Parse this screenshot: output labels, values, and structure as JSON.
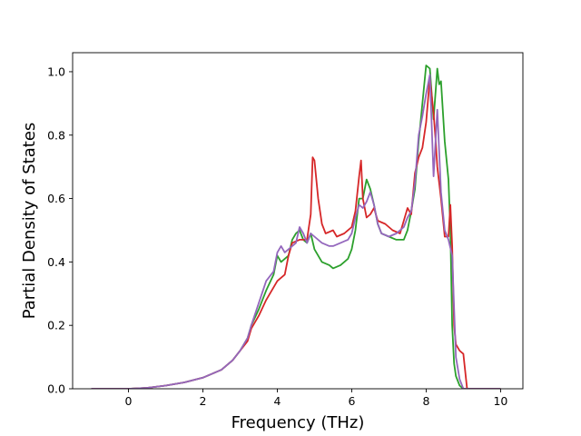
{
  "chart_data": {
    "type": "line",
    "xlabel": "Frequency (THz)",
    "ylabel": "Partial Density of States",
    "xlim": [
      -1.5,
      10.6
    ],
    "ylim": [
      0.0,
      1.06
    ],
    "xticks": [
      "0",
      "2",
      "4",
      "6",
      "8",
      "10"
    ],
    "yticks": [
      "0.0",
      "0.2",
      "0.4",
      "0.6",
      "0.8",
      "1.0"
    ],
    "grid": false,
    "legend": "none",
    "series": [
      {
        "color": "#2ca02c",
        "points": [
          [
            -1.0,
            0.0
          ],
          [
            0.0,
            0.0
          ],
          [
            0.5,
            0.003
          ],
          [
            1.0,
            0.01
          ],
          [
            1.5,
            0.02
          ],
          [
            2.0,
            0.035
          ],
          [
            2.5,
            0.06
          ],
          [
            2.8,
            0.09
          ],
          [
            3.0,
            0.12
          ],
          [
            3.2,
            0.16
          ],
          [
            3.3,
            0.2
          ],
          [
            3.5,
            0.25
          ],
          [
            3.7,
            0.31
          ],
          [
            3.9,
            0.36
          ],
          [
            4.0,
            0.42
          ],
          [
            4.1,
            0.4
          ],
          [
            4.2,
            0.41
          ],
          [
            4.3,
            0.42
          ],
          [
            4.4,
            0.47
          ],
          [
            4.5,
            0.49
          ],
          [
            4.6,
            0.5
          ],
          [
            4.7,
            0.47
          ],
          [
            4.8,
            0.46
          ],
          [
            4.9,
            0.49
          ],
          [
            5.0,
            0.44
          ],
          [
            5.2,
            0.4
          ],
          [
            5.4,
            0.39
          ],
          [
            5.5,
            0.38
          ],
          [
            5.7,
            0.39
          ],
          [
            5.9,
            0.41
          ],
          [
            6.0,
            0.44
          ],
          [
            6.1,
            0.5
          ],
          [
            6.2,
            0.6
          ],
          [
            6.3,
            0.6
          ],
          [
            6.4,
            0.66
          ],
          [
            6.5,
            0.63
          ],
          [
            6.6,
            0.58
          ],
          [
            6.7,
            0.52
          ],
          [
            6.8,
            0.49
          ],
          [
            7.0,
            0.48
          ],
          [
            7.2,
            0.47
          ],
          [
            7.4,
            0.47
          ],
          [
            7.5,
            0.5
          ],
          [
            7.6,
            0.56
          ],
          [
            7.7,
            0.63
          ],
          [
            7.8,
            0.78
          ],
          [
            7.9,
            0.9
          ],
          [
            8.0,
            1.02
          ],
          [
            8.1,
            1.01
          ],
          [
            8.2,
            0.85
          ],
          [
            8.3,
            1.01
          ],
          [
            8.35,
            0.96
          ],
          [
            8.4,
            0.97
          ],
          [
            8.5,
            0.78
          ],
          [
            8.6,
            0.66
          ],
          [
            8.65,
            0.5
          ],
          [
            8.7,
            0.2
          ],
          [
            8.75,
            0.08
          ],
          [
            8.8,
            0.04
          ],
          [
            8.9,
            0.01
          ],
          [
            9.0,
            0.0
          ],
          [
            10.0,
            0.0
          ]
        ]
      },
      {
        "color": "#d62728",
        "points": [
          [
            -1.0,
            0.0
          ],
          [
            0.0,
            0.0
          ],
          [
            0.5,
            0.003
          ],
          [
            1.0,
            0.01
          ],
          [
            1.5,
            0.02
          ],
          [
            2.0,
            0.035
          ],
          [
            2.5,
            0.06
          ],
          [
            2.8,
            0.09
          ],
          [
            3.0,
            0.12
          ],
          [
            3.2,
            0.15
          ],
          [
            3.3,
            0.19
          ],
          [
            3.5,
            0.23
          ],
          [
            3.7,
            0.28
          ],
          [
            3.9,
            0.32
          ],
          [
            4.0,
            0.34
          ],
          [
            4.2,
            0.36
          ],
          [
            4.3,
            0.42
          ],
          [
            4.4,
            0.46
          ],
          [
            4.6,
            0.47
          ],
          [
            4.8,
            0.47
          ],
          [
            4.9,
            0.55
          ],
          [
            4.95,
            0.73
          ],
          [
            5.0,
            0.72
          ],
          [
            5.1,
            0.6
          ],
          [
            5.2,
            0.52
          ],
          [
            5.3,
            0.49
          ],
          [
            5.5,
            0.5
          ],
          [
            5.6,
            0.48
          ],
          [
            5.8,
            0.49
          ],
          [
            6.0,
            0.51
          ],
          [
            6.1,
            0.56
          ],
          [
            6.2,
            0.67
          ],
          [
            6.25,
            0.72
          ],
          [
            6.3,
            0.6
          ],
          [
            6.4,
            0.54
          ],
          [
            6.5,
            0.55
          ],
          [
            6.6,
            0.57
          ],
          [
            6.7,
            0.53
          ],
          [
            6.9,
            0.52
          ],
          [
            7.1,
            0.5
          ],
          [
            7.3,
            0.49
          ],
          [
            7.5,
            0.57
          ],
          [
            7.6,
            0.55
          ],
          [
            7.7,
            0.68
          ],
          [
            7.8,
            0.73
          ],
          [
            7.9,
            0.76
          ],
          [
            8.0,
            0.84
          ],
          [
            8.1,
            0.98
          ],
          [
            8.2,
            0.87
          ],
          [
            8.25,
            0.79
          ],
          [
            8.3,
            0.7
          ],
          [
            8.4,
            0.6
          ],
          [
            8.5,
            0.48
          ],
          [
            8.6,
            0.48
          ],
          [
            8.65,
            0.58
          ],
          [
            8.7,
            0.45
          ],
          [
            8.75,
            0.2
          ],
          [
            8.8,
            0.14
          ],
          [
            8.9,
            0.12
          ],
          [
            9.0,
            0.11
          ],
          [
            9.1,
            0.0
          ],
          [
            10.0,
            0.0
          ]
        ]
      },
      {
        "color": "#9467bd",
        "points": [
          [
            -1.0,
            0.0
          ],
          [
            0.0,
            0.0
          ],
          [
            0.5,
            0.003
          ],
          [
            1.0,
            0.01
          ],
          [
            1.5,
            0.02
          ],
          [
            2.0,
            0.035
          ],
          [
            2.5,
            0.06
          ],
          [
            2.8,
            0.09
          ],
          [
            3.0,
            0.12
          ],
          [
            3.2,
            0.16
          ],
          [
            3.3,
            0.2
          ],
          [
            3.5,
            0.27
          ],
          [
            3.7,
            0.34
          ],
          [
            3.9,
            0.37
          ],
          [
            4.0,
            0.43
          ],
          [
            4.1,
            0.45
          ],
          [
            4.2,
            0.43
          ],
          [
            4.3,
            0.44
          ],
          [
            4.5,
            0.46
          ],
          [
            4.6,
            0.51
          ],
          [
            4.7,
            0.49
          ],
          [
            4.8,
            0.46
          ],
          [
            4.9,
            0.49
          ],
          [
            5.0,
            0.48
          ],
          [
            5.2,
            0.46
          ],
          [
            5.4,
            0.45
          ],
          [
            5.5,
            0.45
          ],
          [
            5.7,
            0.46
          ],
          [
            5.9,
            0.47
          ],
          [
            6.0,
            0.49
          ],
          [
            6.1,
            0.54
          ],
          [
            6.2,
            0.58
          ],
          [
            6.3,
            0.57
          ],
          [
            6.4,
            0.59
          ],
          [
            6.5,
            0.62
          ],
          [
            6.6,
            0.58
          ],
          [
            6.7,
            0.52
          ],
          [
            6.8,
            0.49
          ],
          [
            7.0,
            0.48
          ],
          [
            7.2,
            0.49
          ],
          [
            7.4,
            0.51
          ],
          [
            7.5,
            0.54
          ],
          [
            7.6,
            0.56
          ],
          [
            7.7,
            0.65
          ],
          [
            7.8,
            0.8
          ],
          [
            7.9,
            0.86
          ],
          [
            8.0,
            0.93
          ],
          [
            8.1,
            0.99
          ],
          [
            8.2,
            0.67
          ],
          [
            8.3,
            0.88
          ],
          [
            8.4,
            0.62
          ],
          [
            8.5,
            0.5
          ],
          [
            8.6,
            0.47
          ],
          [
            8.7,
            0.42
          ],
          [
            8.8,
            0.1
          ],
          [
            8.9,
            0.03
          ],
          [
            9.0,
            0.0
          ],
          [
            10.0,
            0.0
          ]
        ]
      }
    ]
  }
}
